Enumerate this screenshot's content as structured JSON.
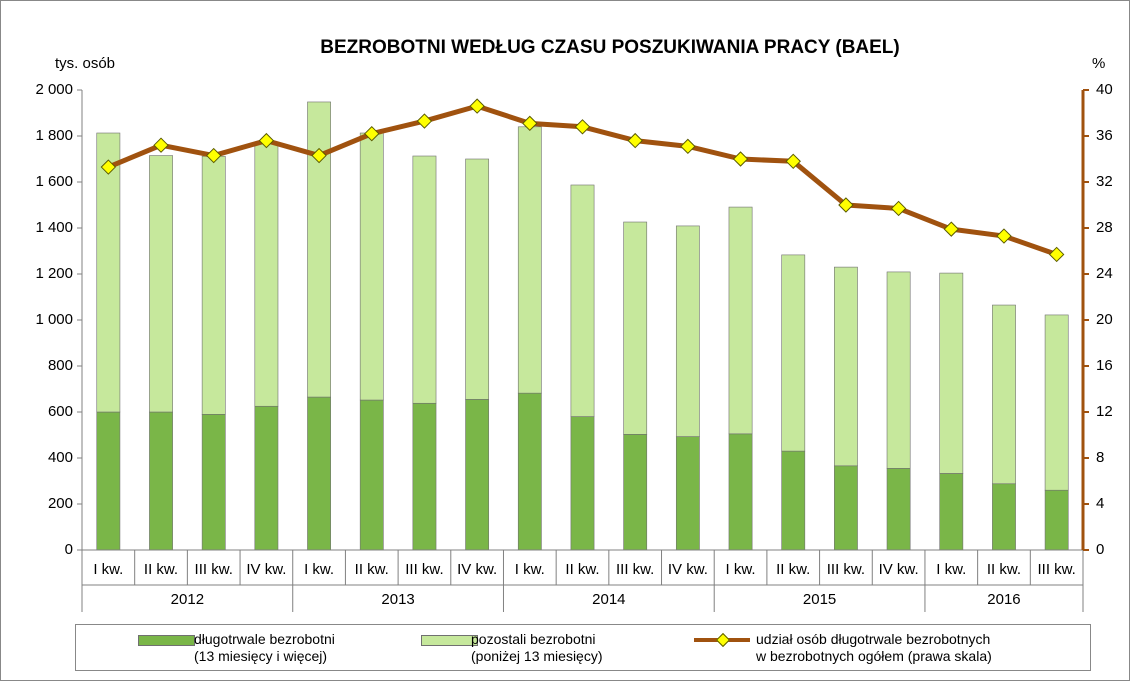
{
  "chart_data": {
    "type": "bar_line",
    "title": "BEZROBOTNI WEDŁUG CZASU POSZUKIWANIA PRACY (BAEL)",
    "y_label": "tys. osób",
    "y2_label": "%",
    "categories": [
      {
        "quarter": "I kw.",
        "year": "2012"
      },
      {
        "quarter": "II kw.",
        "year": "2012"
      },
      {
        "quarter": "III kw.",
        "year": "2012"
      },
      {
        "quarter": "IV kw.",
        "year": "2012"
      },
      {
        "quarter": "I kw.",
        "year": "2013"
      },
      {
        "quarter": "II kw.",
        "year": "2013"
      },
      {
        "quarter": "III kw.",
        "year": "2013"
      },
      {
        "quarter": "IV kw.",
        "year": "2013"
      },
      {
        "quarter": "I kw.",
        "year": "2014"
      },
      {
        "quarter": "II kw.",
        "year": "2014"
      },
      {
        "quarter": "III kw.",
        "year": "2014"
      },
      {
        "quarter": "IV kw.",
        "year": "2014"
      },
      {
        "quarter": "I kw.",
        "year": "2015"
      },
      {
        "quarter": "II kw.",
        "year": "2015"
      },
      {
        "quarter": "III kw.",
        "year": "2015"
      },
      {
        "quarter": "IV kw.",
        "year": "2015"
      },
      {
        "quarter": "I kw.",
        "year": "2016"
      },
      {
        "quarter": "II kw.",
        "year": "2016"
      },
      {
        "quarter": "III kw.",
        "year": "2016"
      }
    ],
    "series": [
      {
        "name": "długotrwale bezrobotni\n(13 miesięcy i więcej)",
        "color": "#7ab648",
        "stack": true,
        "values": [
          600,
          600,
          590,
          625,
          665,
          652,
          638,
          655,
          682,
          580,
          503,
          493,
          505,
          430,
          366,
          355,
          333,
          288,
          260
        ]
      },
      {
        "name": "pozostali bezrobotni\n(poniżej 13 miesięcy)",
        "color": "#c6e89c",
        "stack": true,
        "values": [
          1213,
          1115,
          1122,
          1145,
          1283,
          1161,
          1075,
          1045,
          1158,
          1007,
          923,
          916,
          986,
          853,
          864,
          854,
          871,
          777,
          762
        ]
      },
      {
        "name": "udział osób długotrwale bezrobotnych\nw bezrobotnych ogółem (prawa skala)",
        "color": "#a0520f",
        "marker_color": "#ffff00",
        "axis": "y2",
        "values": [
          33.3,
          35.2,
          34.3,
          35.6,
          34.3,
          36.2,
          37.3,
          38.6,
          37.1,
          36.8,
          35.6,
          35.1,
          34.0,
          33.8,
          30.0,
          29.7,
          27.9,
          27.3,
          25.7
        ]
      }
    ],
    "ylim": [
      0,
      2000
    ],
    "yticks": [
      0,
      200,
      400,
      600,
      800,
      {
        "value": 1000,
        "label": "1 000"
      },
      {
        "value": 1200,
        "label": "1 200"
      },
      {
        "value": 1400,
        "label": "1 400"
      },
      {
        "value": 1600,
        "label": "1 600"
      },
      {
        "value": 1800,
        "label": "1 800"
      },
      {
        "value": 2000,
        "label": "2 000"
      }
    ],
    "y2lim": [
      0,
      40
    ],
    "y2ticks": [
      0,
      4,
      8,
      12,
      16,
      20,
      24,
      28,
      32,
      36,
      40
    ],
    "grid": false
  }
}
